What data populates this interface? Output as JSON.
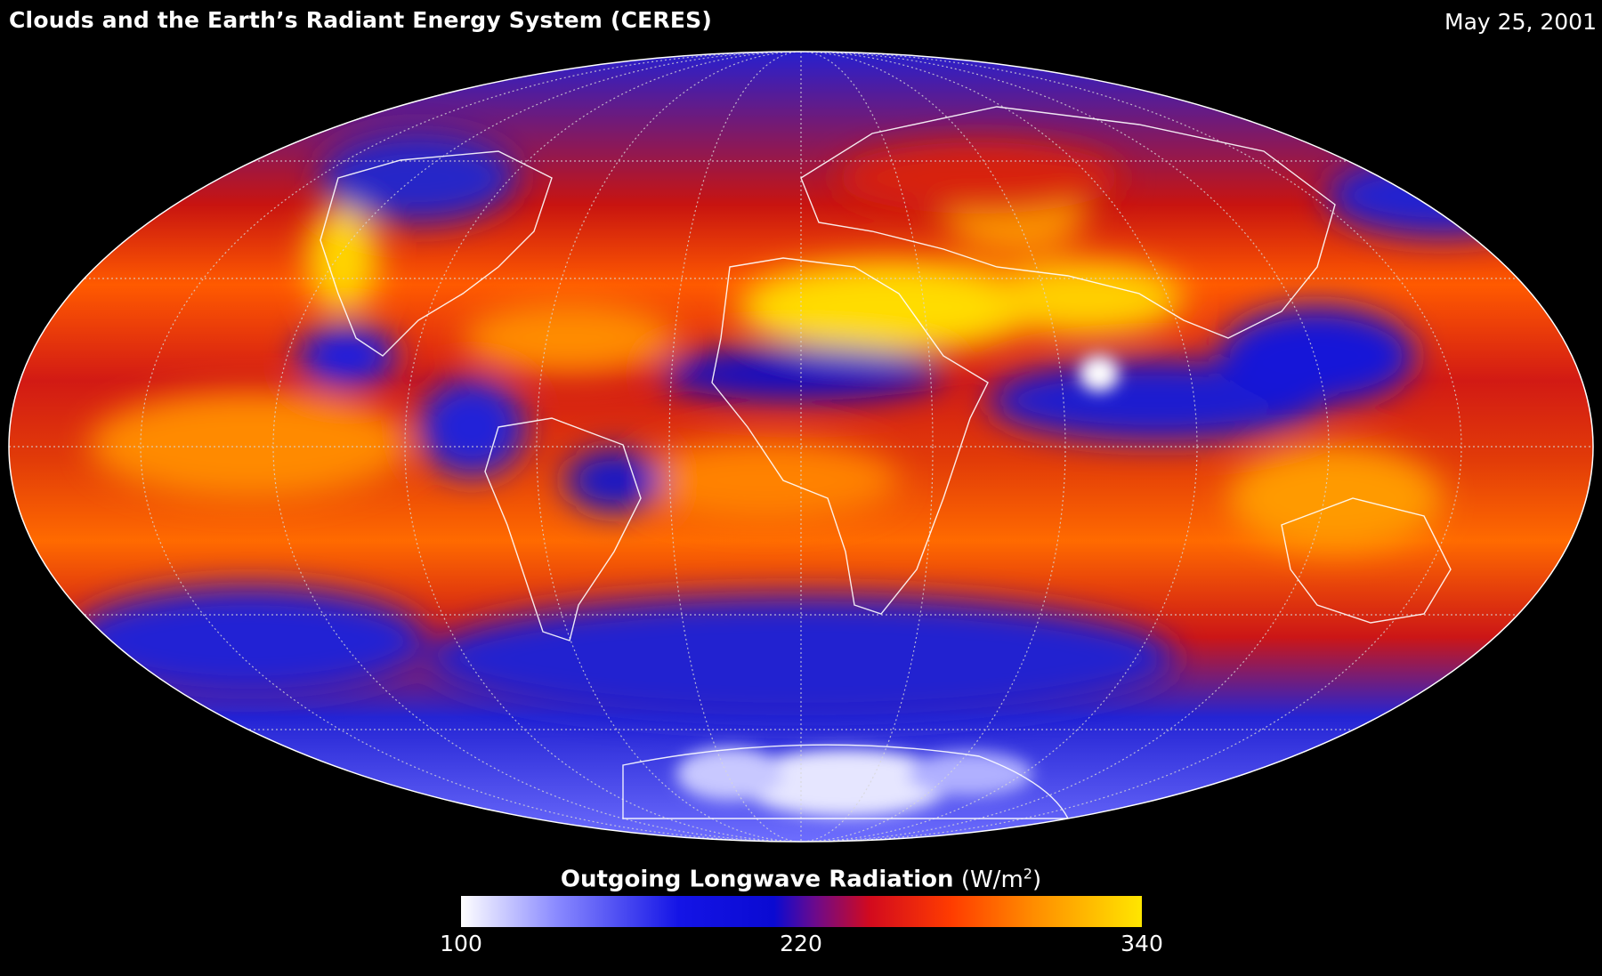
{
  "header": {
    "title": "Clouds and the Earth’s Radiant Energy System (CERES)",
    "date": "May 25, 2001"
  },
  "legend": {
    "title": "Outgoing Longwave Radiation",
    "unit_base": "(W/m",
    "unit_exp": "2",
    "unit_close": ")",
    "min": "100",
    "mid": "220",
    "max": "340"
  },
  "colors": {
    "low": "#ffffff",
    "mid_low": "#0a0ad2",
    "mid": "#d20a1e",
    "high": "#ff8c00",
    "max": "#ffe600"
  }
}
